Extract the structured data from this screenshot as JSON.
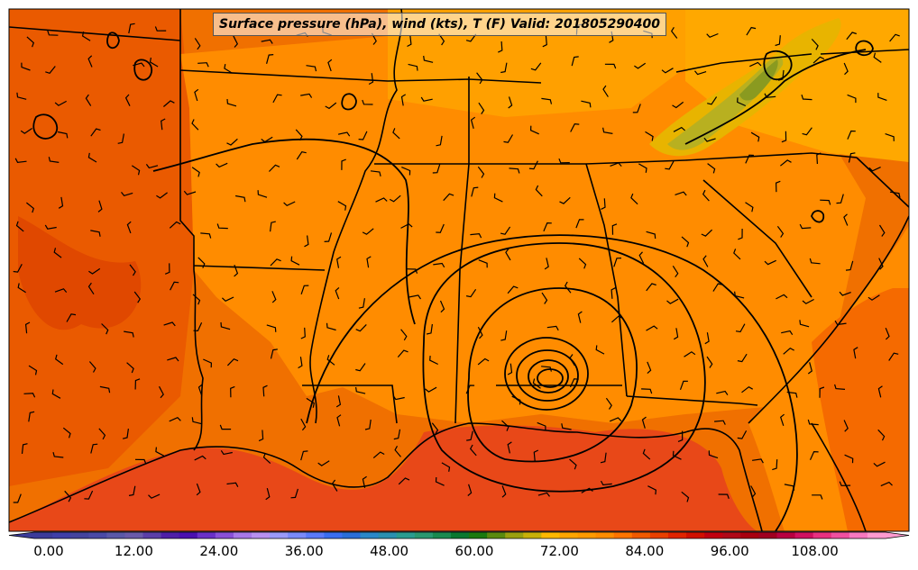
{
  "map": {
    "title": "Surface pressure (hPa), wind (kts), T (F) Valid: 201805290400",
    "colorbar": {
      "tick_labels": [
        "0.00",
        "12.00",
        "24.00",
        "36.00",
        "48.00",
        "60.00",
        "72.00",
        "84.00",
        "96.00",
        "108.00"
      ],
      "tick_values": [
        0,
        12,
        24,
        36,
        48,
        60,
        72,
        84,
        96,
        108
      ],
      "range": [
        0,
        120
      ],
      "step": 3,
      "extend": "both",
      "colors": [
        "#3b3b9a",
        "#3f3fa8",
        "#44449e",
        "#4a4aa5",
        "#5a58a8",
        "#6a5aaa",
        "#5b3fa8",
        "#4e1fa8",
        "#4a10b0",
        "#6a30c8",
        "#8a50d8",
        "#a878e8",
        "#b890f0",
        "#9a9af8",
        "#7a8af8",
        "#5a7af8",
        "#3a6ef0",
        "#2a6ed8",
        "#2a88c8",
        "#2a90b0",
        "#2a9c90",
        "#2a9870",
        "#1a8a50",
        "#0a7830",
        "#1a7a10",
        "#5a8a10",
        "#9aa010",
        "#c8b008",
        "#ffb800",
        "#ffa500",
        "#ff9a00",
        "#ff8c00",
        "#ff7400",
        "#f05a00",
        "#e84000",
        "#e02400",
        "#d01000",
        "#c00010",
        "#b00818",
        "#a80010",
        "#a00020",
        "#b80040",
        "#d01060",
        "#e83080",
        "#f050a0",
        "#f878c0",
        "#ff9ad0"
      ]
    },
    "fill_colors": {
      "background": "#f07000",
      "warm_region": "#ff8c00",
      "hot_region": "#e65000",
      "coastal_water": "#e84818",
      "cool_ridge": "#ffa800",
      "mountains_yellow": "#e8b400",
      "mountains_green": "#b8b020"
    }
  }
}
